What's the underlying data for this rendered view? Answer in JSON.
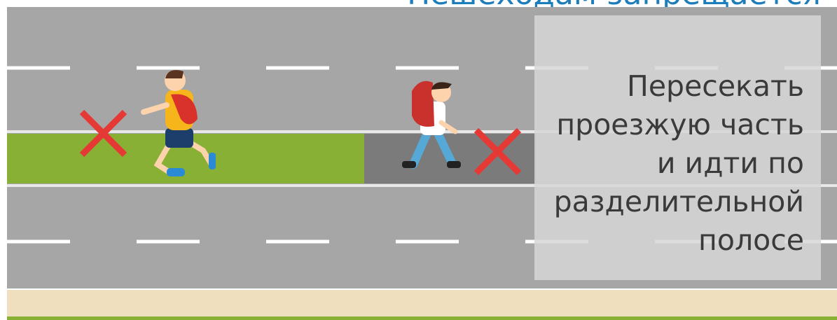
{
  "header": {
    "title": "Пешеходам запрещается"
  },
  "panel": {
    "lines": [
      "Пересекать",
      "проезжую часть",
      "и идти по",
      "разделительной",
      "полосе"
    ]
  }
}
